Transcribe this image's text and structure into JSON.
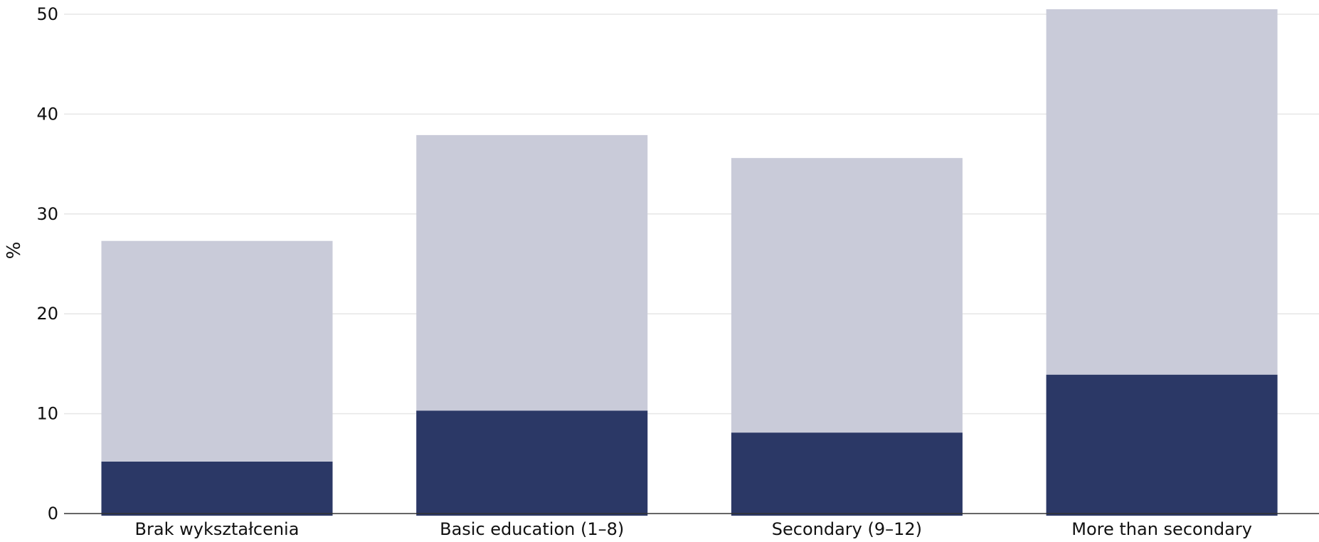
{
  "chart_data": {
    "type": "bar",
    "stacked": false,
    "overlapping": true,
    "categories": [
      "Brak wykształcenia",
      "Basic education (1–8)",
      "Secondary (9–12)",
      "More than secondary"
    ],
    "series": [
      {
        "values": [
          27.3,
          37.9,
          35.6,
          50.5
        ]
      },
      {
        "values": [
          5.2,
          10.3,
          8.1,
          13.9
        ]
      }
    ],
    "colors": [
      "#c9cbd9",
      "#2b3866"
    ],
    "title": "",
    "xlabel": "",
    "ylabel": "%",
    "ylim": [
      0,
      50
    ],
    "yticks": [
      0,
      10,
      20,
      30,
      40,
      50
    ],
    "grid": true
  }
}
